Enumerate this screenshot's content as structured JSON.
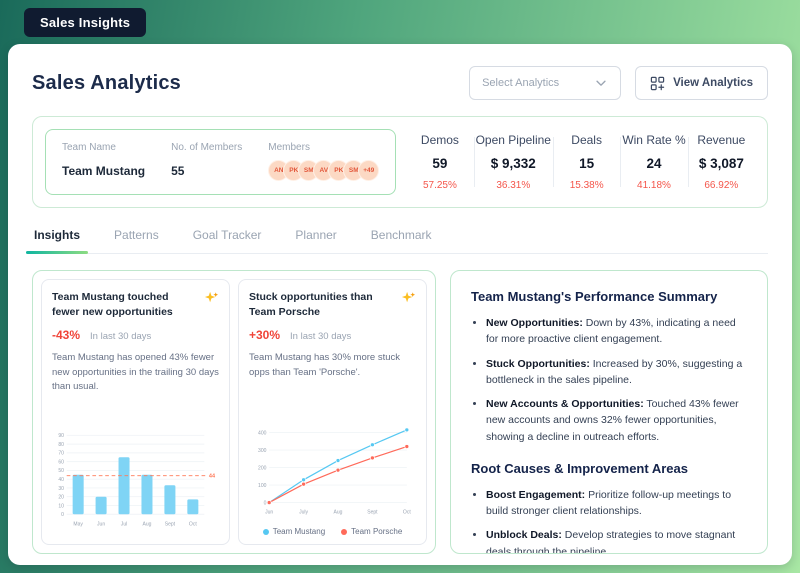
{
  "header": {
    "app_title": "Sales Insights"
  },
  "page": {
    "title": "Sales Analytics",
    "select_analytics": {
      "placeholder": "Select Analytics"
    },
    "view_analytics_label": "View Analytics"
  },
  "team": {
    "name_label": "Team Name",
    "name": "Team Mustang",
    "members_label": "No. of Members",
    "members_count": "55",
    "avatars_label": "Members",
    "avatars": [
      "AN",
      "PK",
      "SM",
      "AV",
      "PK",
      "SM"
    ],
    "avatars_more": "+49"
  },
  "stats": [
    {
      "label": "Demos",
      "value": "59",
      "pct": "57.25%"
    },
    {
      "label": "Open Pipeline",
      "value": "$ 9,332",
      "pct": "36.31%"
    },
    {
      "label": "Deals",
      "value": "15",
      "pct": "15.38%"
    },
    {
      "label": "Win Rate %",
      "value": "24",
      "pct": "41.18%"
    },
    {
      "label": "Revenue",
      "value": "$ 3,087",
      "pct": "66.92%"
    }
  ],
  "tabs": [
    {
      "label": "Insights",
      "active": true
    },
    {
      "label": "Patterns",
      "active": false
    },
    {
      "label": "Goal Tracker",
      "active": false
    },
    {
      "label": "Planner",
      "active": false
    },
    {
      "label": "Benchmark",
      "active": false
    }
  ],
  "insight_cards": [
    {
      "title": "Team Mustang touched fewer new opportunities",
      "delta": "-43%",
      "period": "In last 30 days",
      "description": "Team Mustang has opened 43% fewer new opportunities in the trailing 30 days than usual."
    },
    {
      "title": "Stuck opportunities than Team Porsche",
      "delta": "+30%",
      "period": "In last 30 days",
      "description": "Team Mustang has 30% more stuck opps than Team 'Porsche'."
    }
  ],
  "chart_data": [
    {
      "type": "bar",
      "categories": [
        "May",
        "Jun",
        "Jul",
        "Aug",
        "Sept",
        "Oct"
      ],
      "values": [
        45,
        20,
        65,
        45,
        33,
        17
      ],
      "ylim": [
        0,
        90
      ],
      "yticks": [
        0,
        10,
        20,
        30,
        40,
        50,
        60,
        70,
        80,
        90
      ],
      "bar_color": "#7fd4f5",
      "reference_line": {
        "value": 44,
        "label": "44",
        "color": "#ff7a59"
      },
      "grid": true,
      "title": "",
      "xlabel": "",
      "ylabel": ""
    },
    {
      "type": "line",
      "categories": [
        "Jun",
        "July",
        "Aug",
        "Sept",
        "Oct"
      ],
      "series": [
        {
          "name": "Team Mustang",
          "color": "#56c8f2",
          "values": [
            0,
            130,
            240,
            330,
            415
          ]
        },
        {
          "name": "Team Porsche",
          "color": "#ff6a5a",
          "values": [
            0,
            105,
            185,
            255,
            320
          ]
        }
      ],
      "ylim": [
        0,
        400
      ],
      "yticks": [
        0,
        100,
        200,
        300,
        400
      ],
      "grid": true,
      "legend_position": "bottom",
      "title": "",
      "xlabel": "",
      "ylabel": ""
    }
  ],
  "summary": {
    "title": "Team Mustang's Performance Summary",
    "bullets": [
      {
        "lead": "New Opportunities:",
        "text": "Down by 43%, indicating a need for more proactive client engagement."
      },
      {
        "lead": "Stuck Opportunities:",
        "text": "Increased by 30%, suggesting a bottleneck in the sales pipeline."
      },
      {
        "lead": "New Accounts & Opportunities:",
        "text": "Touched 43% fewer new accounts and owns 32% fewer opportunities, showing a decline in outreach efforts."
      }
    ],
    "subtitle": "Root Causes & Improvement Areas",
    "bullets2": [
      {
        "lead": "Boost Engagement:",
        "text": "Prioritize follow-up meetings to build stronger client relationships."
      },
      {
        "lead": "Unblock Deals:",
        "text": "Develop strategies to move stagnant deals through the pipeline."
      }
    ]
  },
  "colors": {
    "accent_teal": "#0fb5a0",
    "accent_green": "#8ddc82",
    "negative": "#f4564b",
    "bar_blue": "#7fd4f5",
    "line_blue": "#56c8f2",
    "line_red": "#ff6a5a",
    "panel_border_green": "#bfe7cd"
  }
}
